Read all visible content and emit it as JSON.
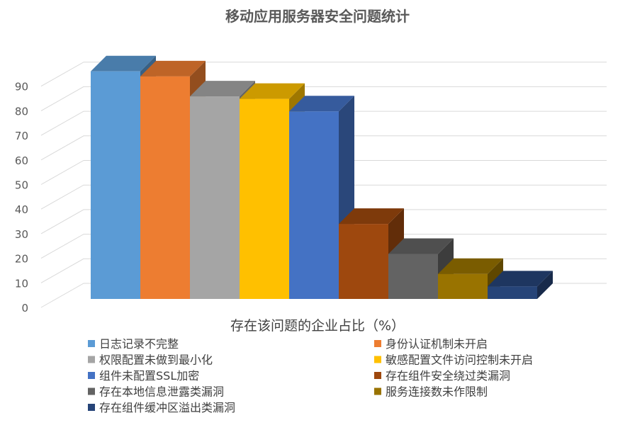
{
  "chart_data": {
    "type": "bar",
    "title": "移动应用服务器安全问题统计",
    "xlabel": "存在该问题的企业占比（%）",
    "ylabel": "",
    "ylim": [
      0,
      90
    ],
    "yticks": [
      0,
      10,
      20,
      30,
      40,
      50,
      60,
      70,
      80,
      90
    ],
    "grid": true,
    "legend_position": "bottom",
    "three_d": true,
    "series": [
      {
        "name": "日志记录不完整",
        "value": 91,
        "color": "#5b9bd5"
      },
      {
        "name": "身份认证机制未开启",
        "value": 89,
        "color": "#ed7d31"
      },
      {
        "name": "权限配置未做到最小化",
        "value": 81,
        "color": "#a5a5a5"
      },
      {
        "name": "敏感配置文件访问控制未开启",
        "value": 80,
        "color": "#ffc000"
      },
      {
        "name": "组件未配置SSL加密",
        "value": 75,
        "color": "#4472c4"
      },
      {
        "name": "存在组件安全绕过类漏洞",
        "value": 30,
        "color": "#9e480e"
      },
      {
        "name": "存在本地信息泄露类漏洞",
        "value": 18,
        "color": "#636363"
      },
      {
        "name": "服务连接数未作限制",
        "value": 10,
        "color": "#997300"
      },
      {
        "name": "存在组件缓冲区溢出类漏洞",
        "value": 5,
        "color": "#264478"
      }
    ]
  }
}
